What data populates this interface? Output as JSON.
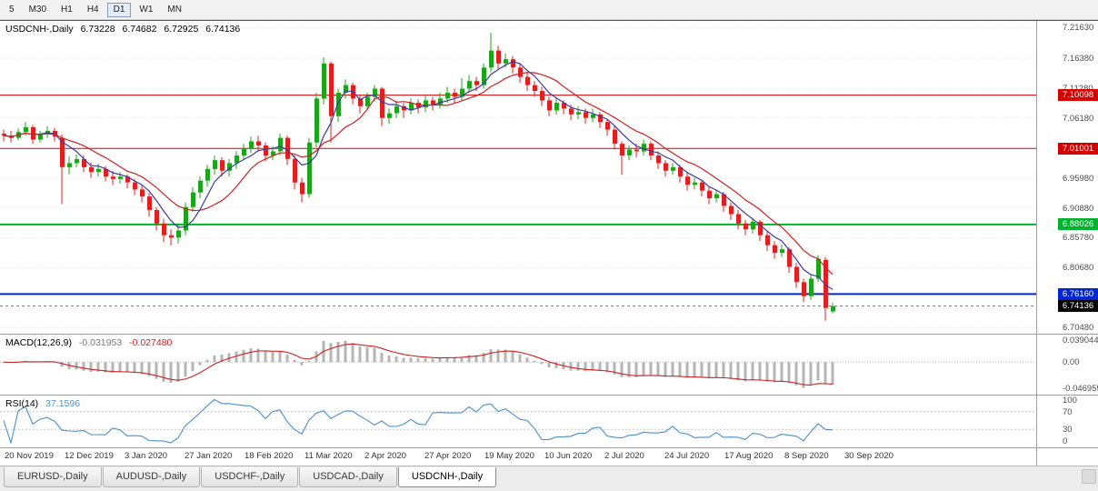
{
  "toolbar": {
    "timeframes": [
      {
        "label": "5",
        "selected": false
      },
      {
        "label": "M30",
        "selected": false
      },
      {
        "label": "H1",
        "selected": false
      },
      {
        "label": "H4",
        "selected": false
      },
      {
        "label": "D1",
        "selected": true
      },
      {
        "label": "W1",
        "selected": false
      },
      {
        "label": "MN",
        "selected": false
      }
    ]
  },
  "chart": {
    "header": {
      "instrument": "USDCNH-,Daily",
      "open": "6.73228",
      "high": "6.74682",
      "low": "6.72925",
      "close": "6.74136"
    },
    "price_axis": {
      "ticks": [
        "7.21630",
        "7.16380",
        "7.11280",
        "7.06180",
        "6.95980",
        "6.90880",
        "6.85780",
        "6.80680",
        "6.70480"
      ]
    }
  },
  "chart_data": {
    "type": "candlestick",
    "symbol": "USDCNH-",
    "timeframe": "Daily",
    "y_range": [
      6.6925,
      7.2275
    ],
    "colors": {
      "up": "#1ca41c",
      "down": "#e02020"
    },
    "moving_averages": [
      {
        "name": "ma-fast-line",
        "period": 5,
        "color": "#3b3b9e"
      },
      {
        "name": "ma-slow-line",
        "period": 10,
        "color": "#cc2222"
      }
    ],
    "levels": [
      {
        "label": "7.10098",
        "value": 7.10098,
        "color": "#d40000",
        "width": 1
      },
      {
        "label": "7.01001",
        "value": 7.01001,
        "color": "#d40000",
        "width": 1
      },
      {
        "label": "6.88026",
        "value": 6.88026,
        "color": "#00b22d",
        "width": 2
      },
      {
        "label": "6.76160",
        "value": 6.7616,
        "color": "#0026d4",
        "width": 2
      }
    ],
    "current_price": {
      "label": "6.74136",
      "value": 6.74136,
      "color": "#000000"
    },
    "x_labels": [
      "20 Nov 2019",
      "12 Dec 2019",
      "3 Jan 2020",
      "27 Jan 2020",
      "18 Feb 2020",
      "11 Mar 2020",
      "2 Apr 2020",
      "27 Apr 2020",
      "19 May 2020",
      "10 Jun 2020",
      "2 Jul 2020",
      "24 Jul 2020",
      "17 Aug 2020",
      "8 Sep 2020",
      "30 Sep 2020"
    ],
    "candles": [
      [
        7.035,
        7.042,
        7.022,
        7.032
      ],
      [
        7.032,
        7.04,
        7.02,
        7.028
      ],
      [
        7.028,
        7.044,
        7.024,
        7.038
      ],
      [
        7.038,
        7.055,
        7.032,
        7.046
      ],
      [
        7.046,
        7.05,
        7.018,
        7.025
      ],
      [
        7.025,
        7.04,
        7.02,
        7.035
      ],
      [
        7.035,
        7.048,
        7.028,
        7.04
      ],
      [
        7.04,
        7.045,
        7.022,
        7.03
      ],
      [
        7.028,
        7.034,
        6.915,
        6.978
      ],
      [
        6.978,
        6.996,
        6.966,
        6.985
      ],
      [
        6.985,
        7.0,
        6.978,
        6.992
      ],
      [
        6.992,
        6.998,
        6.97,
        6.978
      ],
      [
        6.978,
        6.986,
        6.96,
        6.97
      ],
      [
        6.97,
        6.984,
        6.962,
        6.975
      ],
      [
        6.975,
        6.98,
        6.954,
        6.962
      ],
      [
        6.962,
        6.972,
        6.948,
        6.958
      ],
      [
        6.958,
        6.97,
        6.95,
        6.962
      ],
      [
        6.962,
        6.966,
        6.942,
        6.952
      ],
      [
        6.952,
        6.958,
        6.93,
        6.94
      ],
      [
        6.94,
        6.948,
        6.918,
        6.928
      ],
      [
        6.928,
        6.934,
        6.894,
        6.905
      ],
      [
        6.905,
        6.91,
        6.87,
        6.882
      ],
      [
        6.882,
        6.89,
        6.85,
        6.862
      ],
      [
        6.862,
        6.872,
        6.845,
        6.858
      ],
      [
        6.858,
        6.882,
        6.848,
        6.87
      ],
      [
        6.87,
        6.918,
        6.862,
        6.91
      ],
      [
        6.91,
        6.944,
        6.902,
        6.935
      ],
      [
        6.935,
        6.962,
        6.925,
        6.955
      ],
      [
        6.955,
        6.982,
        6.945,
        6.975
      ],
      [
        6.975,
        6.998,
        6.965,
        6.99
      ],
      [
        6.99,
        6.995,
        6.962,
        6.972
      ],
      [
        6.972,
        6.992,
        6.962,
        6.985
      ],
      [
        6.985,
        7.005,
        6.975,
        6.998
      ],
      [
        6.998,
        7.018,
        6.99,
        7.01
      ],
      [
        7.01,
        7.03,
        7.002,
        7.022
      ],
      [
        7.022,
        7.032,
        7.005,
        7.015
      ],
      [
        7.015,
        7.02,
        6.988,
        6.998
      ],
      [
        6.998,
        7.014,
        6.99,
        7.005
      ],
      [
        7.005,
        7.035,
        6.998,
        7.028
      ],
      [
        7.028,
        7.032,
        6.982,
        6.992
      ],
      [
        6.992,
        6.998,
        6.94,
        6.952
      ],
      [
        6.952,
        6.96,
        6.918,
        6.932
      ],
      [
        6.932,
        7.028,
        6.926,
        7.02
      ],
      [
        7.02,
        7.105,
        7.012,
        7.095
      ],
      [
        7.095,
        7.165,
        7.085,
        7.155
      ],
      [
        7.155,
        7.158,
        7.02,
        7.065
      ],
      [
        7.065,
        7.112,
        7.055,
        7.105
      ],
      [
        7.105,
        7.128,
        7.095,
        7.118
      ],
      [
        7.118,
        7.122,
        7.085,
        7.095
      ],
      [
        7.095,
        7.102,
        7.07,
        7.082
      ],
      [
        7.082,
        7.105,
        7.075,
        7.098
      ],
      [
        7.098,
        7.118,
        7.09,
        7.112
      ],
      [
        7.112,
        7.115,
        7.048,
        7.062
      ],
      [
        7.062,
        7.078,
        7.052,
        7.07
      ],
      [
        7.07,
        7.092,
        7.062,
        7.082
      ],
      [
        7.082,
        7.088,
        7.062,
        7.075
      ],
      [
        7.075,
        7.095,
        7.068,
        7.088
      ],
      [
        7.088,
        7.094,
        7.07,
        7.08
      ],
      [
        7.08,
        7.1,
        7.072,
        7.092
      ],
      [
        7.092,
        7.098,
        7.075,
        7.085
      ],
      [
        7.085,
        7.105,
        7.078,
        7.095
      ],
      [
        7.095,
        7.115,
        7.088,
        7.105
      ],
      [
        7.105,
        7.112,
        7.088,
        7.098
      ],
      [
        7.098,
        7.13,
        7.092,
        7.112
      ],
      [
        7.112,
        7.135,
        7.105,
        7.125
      ],
      [
        7.125,
        7.132,
        7.108,
        7.118
      ],
      [
        7.118,
        7.155,
        7.112,
        7.148
      ],
      [
        7.148,
        7.207,
        7.14,
        7.177
      ],
      [
        7.177,
        7.185,
        7.145,
        7.155
      ],
      [
        7.155,
        7.172,
        7.148,
        7.162
      ],
      [
        7.162,
        7.168,
        7.138,
        7.148
      ],
      [
        7.148,
        7.155,
        7.122,
        7.132
      ],
      [
        7.132,
        7.14,
        7.108,
        7.118
      ],
      [
        7.118,
        7.125,
        7.098,
        7.108
      ],
      [
        7.108,
        7.115,
        7.082,
        7.092
      ],
      [
        7.092,
        7.098,
        7.065,
        7.075
      ],
      [
        7.075,
        7.095,
        7.068,
        7.088
      ],
      [
        7.088,
        7.092,
        7.068,
        7.078
      ],
      [
        7.078,
        7.085,
        7.058,
        7.068
      ],
      [
        7.068,
        7.082,
        7.06,
        7.072
      ],
      [
        7.072,
        7.078,
        7.052,
        7.062
      ],
      [
        7.062,
        7.078,
        7.055,
        7.068
      ],
      [
        7.068,
        7.072,
        7.045,
        7.055
      ],
      [
        7.055,
        7.06,
        7.032,
        7.042
      ],
      [
        7.042,
        7.048,
        7.008,
        7.018
      ],
      [
        7.018,
        7.022,
        6.965,
        6.998
      ],
      [
        6.998,
        7.015,
        6.99,
        7.008
      ],
      [
        7.008,
        7.018,
        6.995,
        7.005
      ],
      [
        7.005,
        7.025,
        6.998,
        7.018
      ],
      [
        7.018,
        7.022,
        6.99,
        6.998
      ],
      [
        6.998,
        7.005,
        6.975,
        6.985
      ],
      [
        6.985,
        6.99,
        6.962,
        6.972
      ],
      [
        6.972,
        6.985,
        6.965,
        6.978
      ],
      [
        6.978,
        6.982,
        6.952,
        6.962
      ],
      [
        6.962,
        6.968,
        6.938,
        6.948
      ],
      [
        6.948,
        6.96,
        6.94,
        6.952
      ],
      [
        6.952,
        6.955,
        6.928,
        6.938
      ],
      [
        6.938,
        6.944,
        6.915,
        6.925
      ],
      [
        6.925,
        6.94,
        6.918,
        6.932
      ],
      [
        6.932,
        6.936,
        6.902,
        6.912
      ],
      [
        6.912,
        6.918,
        6.888,
        6.898
      ],
      [
        6.898,
        6.905,
        6.872,
        6.882
      ],
      [
        6.882,
        6.888,
        6.862,
        6.872
      ],
      [
        6.872,
        6.892,
        6.865,
        6.885
      ],
      [
        6.885,
        6.888,
        6.852,
        6.862
      ],
      [
        6.862,
        6.868,
        6.835,
        6.845
      ],
      [
        6.845,
        6.852,
        6.822,
        6.832
      ],
      [
        6.832,
        6.846,
        6.825,
        6.838
      ],
      [
        6.838,
        6.842,
        6.798,
        6.808
      ],
      [
        6.808,
        6.815,
        6.772,
        6.782
      ],
      [
        6.782,
        6.788,
        6.748,
        6.758
      ],
      [
        6.758,
        6.795,
        6.752,
        6.788
      ],
      [
        6.788,
        6.828,
        6.782,
        6.822
      ],
      [
        6.82,
        6.825,
        6.716,
        6.738
      ],
      [
        6.732,
        6.747,
        6.729,
        6.741
      ]
    ]
  },
  "macd": {
    "label": "MACD(12,26,9)",
    "value_main": "-0.031953",
    "value_signal": "-0.027480",
    "scale_labels": [
      "0.039044",
      "0.00",
      "-0.046955"
    ],
    "histogram_color": "#b4b4b4",
    "signal_color": "#cc2222"
  },
  "rsi": {
    "label": "RSI(14)",
    "value": "37.1596",
    "scale_labels": [
      "100",
      "70",
      "30",
      "0"
    ],
    "level_lines": [
      70,
      30
    ],
    "line_color": "#4a8fd2"
  },
  "tabs": [
    {
      "label": "EURUSD-,Daily",
      "active": false
    },
    {
      "label": "AUDUSD-,Daily",
      "active": false
    },
    {
      "label": "USDCHF-,Daily",
      "active": false
    },
    {
      "label": "USDCAD-,Daily",
      "active": false
    },
    {
      "label": "USDCNH-,Daily",
      "active": true
    }
  ]
}
